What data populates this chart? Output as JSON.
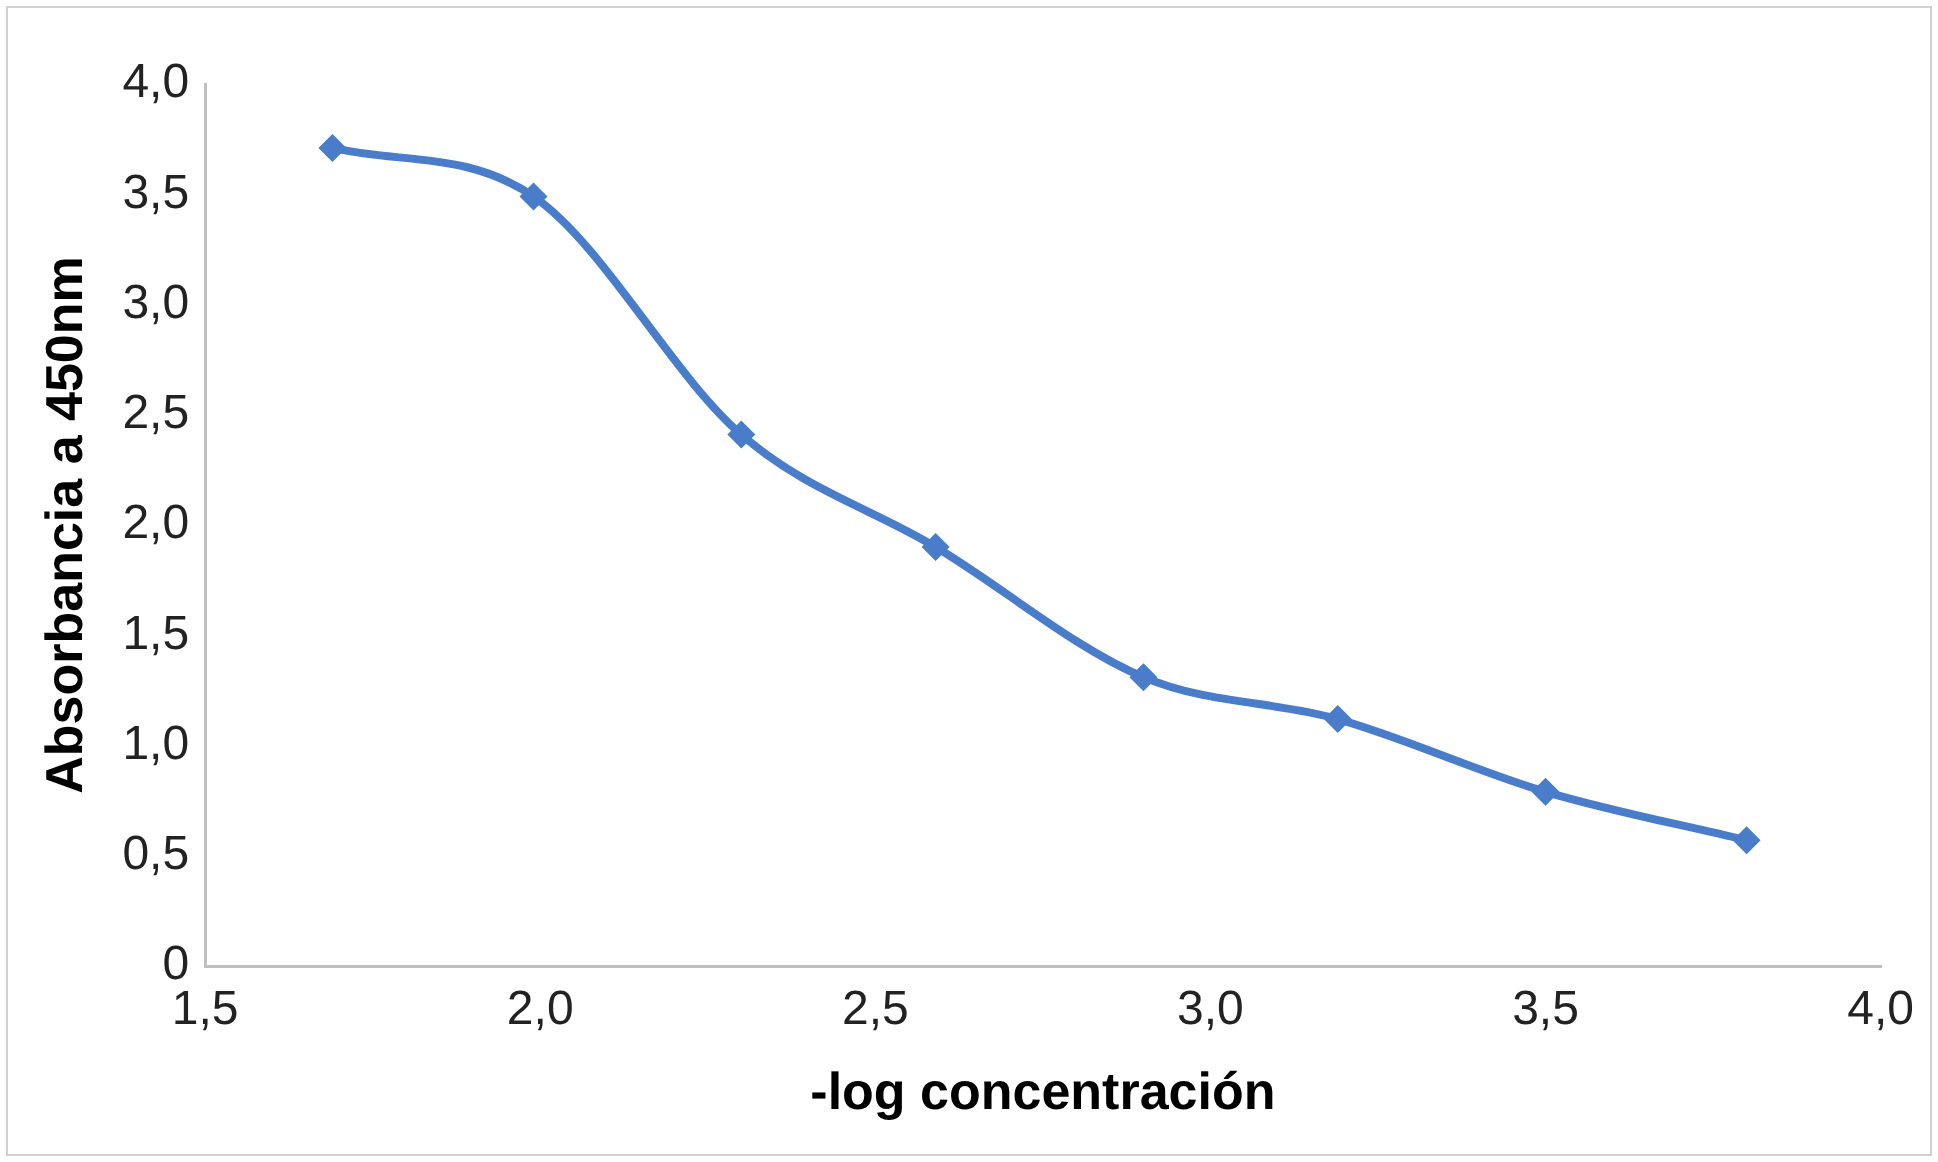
{
  "chart_data": {
    "type": "line",
    "xlabel": "-log concentración",
    "ylabel": "Absorbancia a 450nm",
    "x": [
      1.69,
      1.99,
      2.3,
      2.59,
      2.9,
      3.19,
      3.5,
      3.8
    ],
    "series": [
      {
        "color": "#4a7dc9",
        "values": [
          3.71,
          3.49,
          2.41,
          1.9,
          1.31,
          1.12,
          0.79,
          0.57
        ]
      }
    ],
    "xlim": [
      1.5,
      4.0
    ],
    "xticks": [
      {
        "value": 1.5,
        "label": "1,5"
      },
      {
        "value": 2.0,
        "label": "2,0"
      },
      {
        "value": 2.5,
        "label": "2,5"
      },
      {
        "value": 3.0,
        "label": "3,0"
      },
      {
        "value": 3.5,
        "label": "3,5"
      },
      {
        "value": 4.0,
        "label": "4,0"
      }
    ],
    "ylim": [
      0,
      4.0
    ],
    "yticks": [
      0,
      {
        "value": 0.5,
        "label": "0,5"
      },
      {
        "value": 1.0,
        "label": "1,0"
      },
      {
        "value": 1.5,
        "label": "1,5"
      },
      {
        "value": 2.0,
        "label": "2,0"
      },
      {
        "value": 2.5,
        "label": "2,5"
      },
      {
        "value": 3.0,
        "label": "3,0"
      },
      {
        "value": 3.5,
        "label": "3,5"
      },
      {
        "value": 4.0,
        "label": "4,0"
      }
    ],
    "grid": false,
    "legend": false,
    "marker": "diamond",
    "line_style": "solid"
  }
}
